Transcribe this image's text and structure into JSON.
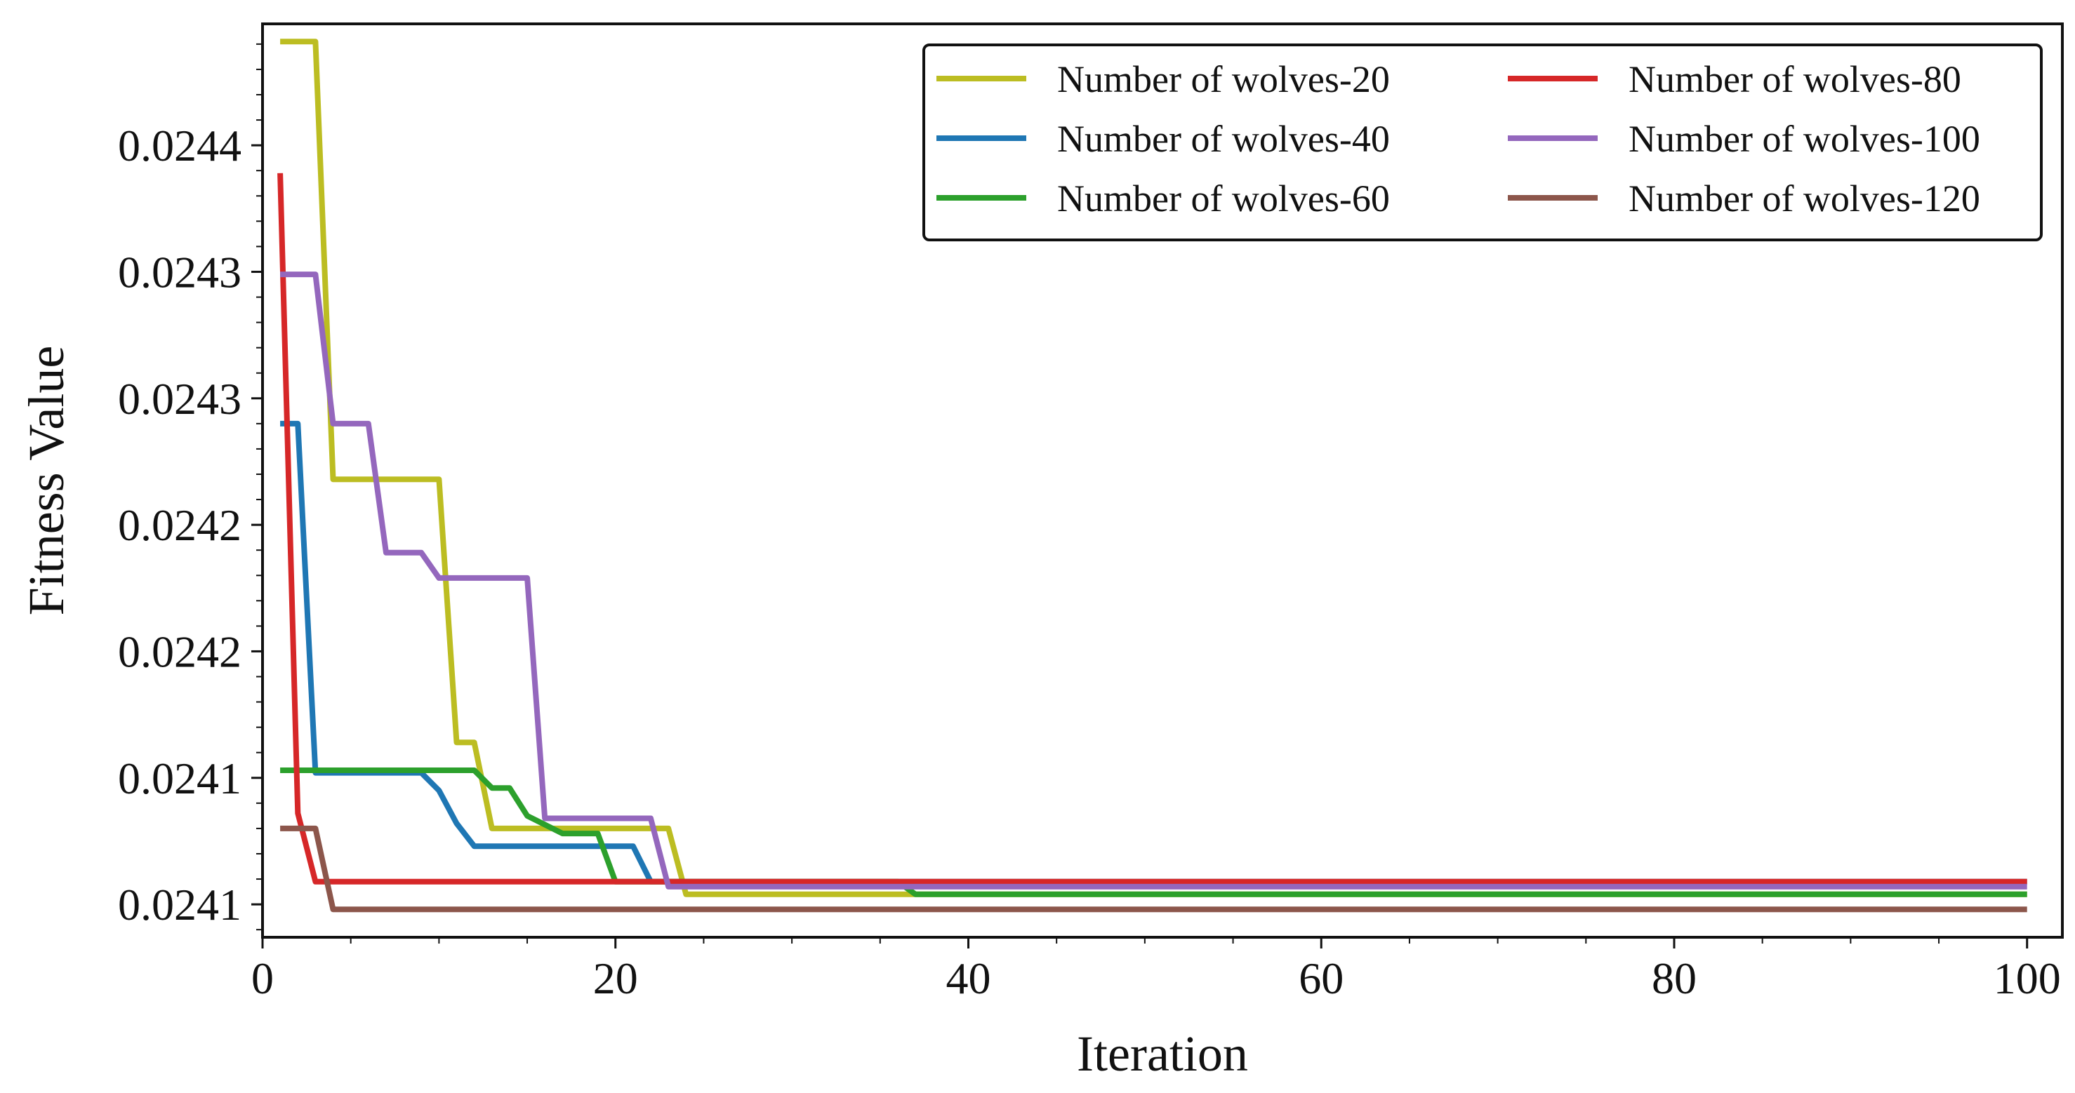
{
  "chart_data": {
    "type": "line",
    "title": "",
    "xlabel": "Iteration",
    "ylabel": "Fitness Value",
    "xlim": [
      0,
      102
    ],
    "ylim": [
      0.024087,
      0.024448
    ],
    "grid": false,
    "legend_position": "top-right",
    "legend_columns": 2,
    "x_ticks": [
      0,
      20,
      40,
      60,
      80,
      100
    ],
    "x_tick_labels": [
      "0",
      "20",
      "40",
      "60",
      "80",
      "100"
    ],
    "y_ticks": [
      0.0241,
      0.02415,
      0.0242,
      0.02425,
      0.0243,
      0.02435,
      0.0244
    ],
    "y_tick_labels": [
      "0.0241",
      "0.0241",
      "0.0242",
      "0.0242",
      "0.0243",
      "0.0243",
      "0.0244"
    ],
    "series": [
      {
        "name": "Number of wolves-20",
        "color": "#bcbd22",
        "points": [
          [
            1,
            0.024441
          ],
          [
            3,
            0.024441
          ],
          [
            4,
            0.024268
          ],
          [
            10,
            0.024268
          ],
          [
            11,
            0.024164
          ],
          [
            12,
            0.024164
          ],
          [
            13,
            0.02413
          ],
          [
            23,
            0.02413
          ],
          [
            24,
            0.024104
          ],
          [
            36,
            0.024104
          ],
          [
            37,
            0.024104
          ],
          [
            100,
            0.024104
          ]
        ]
      },
      {
        "name": "Number of wolves-40",
        "color": "#1f77b4",
        "points": [
          [
            1,
            0.02429
          ],
          [
            2,
            0.02429
          ],
          [
            3,
            0.024152
          ],
          [
            9,
            0.024152
          ],
          [
            10,
            0.024145
          ],
          [
            11,
            0.024132
          ],
          [
            12,
            0.024123
          ],
          [
            21,
            0.024123
          ],
          [
            22,
            0.024109
          ],
          [
            100,
            0.024109
          ]
        ]
      },
      {
        "name": "Number of wolves-60",
        "color": "#2ca02c",
        "points": [
          [
            1,
            0.024153
          ],
          [
            12,
            0.024153
          ],
          [
            13,
            0.024146
          ],
          [
            14,
            0.024146
          ],
          [
            15,
            0.024135
          ],
          [
            17,
            0.024128
          ],
          [
            19,
            0.024128
          ],
          [
            20,
            0.024109
          ],
          [
            36,
            0.024109
          ],
          [
            37,
            0.024104
          ],
          [
            100,
            0.024104
          ]
        ]
      },
      {
        "name": "Number of wolves-80",
        "color": "#d62728",
        "points": [
          [
            1,
            0.024389
          ],
          [
            2,
            0.024136
          ],
          [
            3,
            0.024109
          ],
          [
            100,
            0.024109
          ]
        ]
      },
      {
        "name": "Number of wolves-100",
        "color": "#9467bd",
        "points": [
          [
            1,
            0.024349
          ],
          [
            3,
            0.024349
          ],
          [
            4,
            0.02429
          ],
          [
            6,
            0.02429
          ],
          [
            7,
            0.024239
          ],
          [
            9,
            0.024239
          ],
          [
            10,
            0.024229
          ],
          [
            15,
            0.024229
          ],
          [
            16,
            0.024134
          ],
          [
            22,
            0.024134
          ],
          [
            23,
            0.024107
          ],
          [
            100,
            0.024107
          ]
        ]
      },
      {
        "name": "Number of wolves-120",
        "color": "#8c564b",
        "points": [
          [
            1,
            0.02413
          ],
          [
            3,
            0.02413
          ],
          [
            4,
            0.024098
          ],
          [
            100,
            0.024098
          ]
        ]
      }
    ]
  }
}
